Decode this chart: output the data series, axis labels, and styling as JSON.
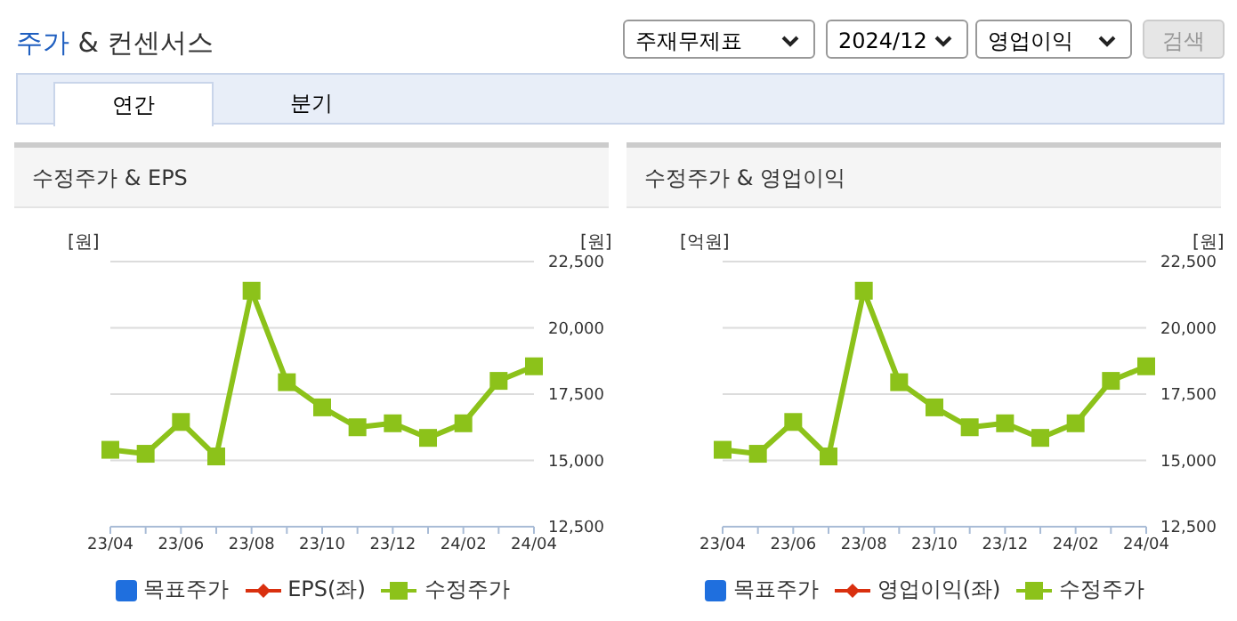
{
  "chart_data": [
    {
      "type": "other",
      "title": "주가 & 컨센서스",
      "annotations": [
        "주재무제표",
        "2024/12",
        "영업이익",
        "검색",
        "연간",
        "분기"
      ]
    },
    {
      "type": "line",
      "title": "수정주가 & EPS",
      "ylabel": "[원]",
      "y2label": "[원]",
      "categories": [
        "23/04",
        null,
        "23/06",
        null,
        "23/08",
        null,
        "23/10",
        null,
        "23/12",
        null,
        "24/02",
        null,
        "24/04"
      ],
      "series": [
        {
          "name": "목표주가",
          "color": "#1f6fde",
          "marker": "square",
          "axis": "y",
          "values": [
            null,
            null,
            null,
            null,
            null,
            null,
            null,
            null,
            null,
            null,
            null,
            null,
            null
          ]
        },
        {
          "name": "EPS(좌)",
          "color": "#d9300f",
          "marker": "diamond",
          "axis": "y",
          "values": [
            null,
            null,
            null,
            null,
            null,
            null,
            null,
            null,
            null,
            null,
            null,
            null,
            null
          ]
        },
        {
          "name": "수정주가",
          "color": "#8cc21a",
          "marker": "square",
          "axis": "y2",
          "values": [
            15400,
            15250,
            16450,
            15150,
            21400,
            17950,
            17000,
            16250,
            16400,
            15850,
            16400,
            18000,
            18550
          ]
        }
      ],
      "y2lim": [
        12500,
        22500
      ],
      "y2ticks": [
        {
          "value": 12500,
          "label": "12,500"
        },
        {
          "value": 15000,
          "label": "15,000"
        },
        {
          "value": 17500,
          "label": "17,500"
        },
        {
          "value": 20000,
          "label": "20,000"
        },
        {
          "value": 22500,
          "label": "22,500"
        }
      ],
      "grid": "y",
      "legend": "bottom"
    },
    {
      "type": "line",
      "title": "수정주가 & 영업이익",
      "ylabel": "[억원]",
      "y2label": "[원]",
      "categories": [
        "23/04",
        null,
        "23/06",
        null,
        "23/08",
        null,
        "23/10",
        null,
        "23/12",
        null,
        "24/02",
        null,
        "24/04"
      ],
      "series": [
        {
          "name": "목표주가",
          "color": "#1f6fde",
          "marker": "square",
          "axis": "y",
          "values": [
            null,
            null,
            null,
            null,
            null,
            null,
            null,
            null,
            null,
            null,
            null,
            null,
            null
          ]
        },
        {
          "name": "영업이익(좌)",
          "color": "#d9300f",
          "marker": "diamond",
          "axis": "y",
          "values": [
            null,
            null,
            null,
            null,
            null,
            null,
            null,
            null,
            null,
            null,
            null,
            null,
            null
          ]
        },
        {
          "name": "수정주가",
          "color": "#8cc21a",
          "marker": "square",
          "axis": "y2",
          "values": [
            15400,
            15250,
            16450,
            15150,
            21400,
            17950,
            17000,
            16250,
            16400,
            15850,
            16400,
            18000,
            18550
          ]
        }
      ],
      "y2lim": [
        12500,
        22500
      ],
      "y2ticks": [
        {
          "value": 12500,
          "label": "12,500"
        },
        {
          "value": 15000,
          "label": "15,000"
        },
        {
          "value": 17500,
          "label": "17,500"
        },
        {
          "value": 20000,
          "label": "20,000"
        },
        {
          "value": 22500,
          "label": "22,500"
        }
      ],
      "grid": "y",
      "legend": "bottom"
    }
  ]
}
